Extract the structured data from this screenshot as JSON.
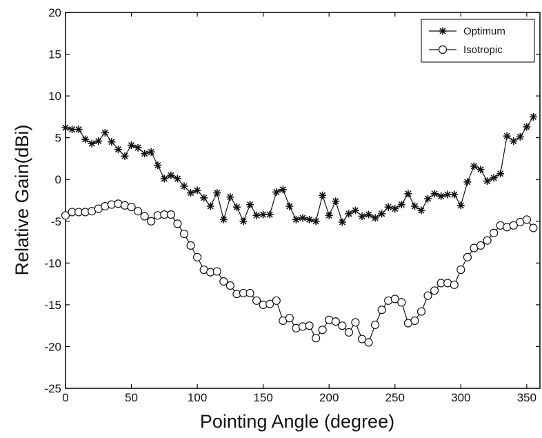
{
  "chart_data": {
    "type": "line",
    "xlabel": "Pointing Angle (degree)",
    "ylabel": "Relative Gain(dBi)",
    "xlim": [
      0,
      360
    ],
    "ylim": [
      -25,
      20
    ],
    "xticks": [
      0,
      50,
      100,
      150,
      200,
      250,
      300,
      350
    ],
    "yticks": [
      -25,
      -20,
      -15,
      -10,
      -5,
      0,
      5,
      10,
      15,
      20
    ],
    "grid": false,
    "legend_position": "top-right",
    "series": [
      {
        "name": "Optimum",
        "marker": "star",
        "color": "#111111",
        "x": [
          0,
          5,
          10,
          15,
          20,
          25,
          30,
          35,
          40,
          45,
          50,
          55,
          60,
          65,
          70,
          75,
          80,
          85,
          90,
          95,
          100,
          105,
          110,
          115,
          120,
          125,
          130,
          135,
          140,
          145,
          150,
          155,
          160,
          165,
          170,
          175,
          180,
          185,
          190,
          195,
          200,
          205,
          210,
          215,
          220,
          225,
          230,
          235,
          240,
          245,
          250,
          255,
          260,
          265,
          270,
          275,
          280,
          285,
          290,
          295,
          300,
          305,
          310,
          315,
          320,
          325,
          330,
          335,
          340,
          345,
          350,
          355
        ],
        "y": [
          6.2,
          6.0,
          6.0,
          4.8,
          4.3,
          4.6,
          5.6,
          4.5,
          3.6,
          2.8,
          4.1,
          3.8,
          3.1,
          3.3,
          1.7,
          0.1,
          0.5,
          0.1,
          -0.8,
          -1.6,
          -1.3,
          -2.2,
          -3.2,
          -1.6,
          -4.8,
          -2.1,
          -3.3,
          -5.0,
          -3.0,
          -4.3,
          -4.2,
          -4.2,
          -1.5,
          -1.2,
          -3.2,
          -4.8,
          -4.6,
          -4.8,
          -5.0,
          -1.9,
          -4.3,
          -2.6,
          -5.1,
          -4.1,
          -3.7,
          -4.4,
          -4.2,
          -4.6,
          -4.1,
          -3.3,
          -3.5,
          -3.0,
          -1.7,
          -3.2,
          -3.7,
          -2.3,
          -1.7,
          -2.0,
          -1.8,
          -1.8,
          -3.1,
          -0.3,
          1.6,
          1.2,
          -0.2,
          0.2,
          0.7,
          5.2,
          4.6,
          5.1,
          6.3,
          7.5
        ]
      },
      {
        "name": "Isotropic",
        "marker": "circle",
        "color": "#111111",
        "x": [
          0,
          5,
          10,
          15,
          20,
          25,
          30,
          35,
          40,
          45,
          50,
          55,
          60,
          65,
          70,
          75,
          80,
          85,
          90,
          95,
          100,
          105,
          110,
          115,
          120,
          125,
          130,
          135,
          140,
          145,
          150,
          155,
          160,
          165,
          170,
          175,
          180,
          185,
          190,
          195,
          200,
          205,
          210,
          215,
          220,
          225,
          230,
          235,
          240,
          245,
          250,
          255,
          260,
          265,
          270,
          275,
          280,
          285,
          290,
          295,
          300,
          305,
          310,
          315,
          320,
          325,
          330,
          335,
          340,
          345,
          350,
          355
        ],
        "y": [
          -4.3,
          -3.9,
          -3.9,
          -3.9,
          -3.8,
          -3.5,
          -3.2,
          -3.0,
          -2.9,
          -3.1,
          -3.3,
          -3.8,
          -4.4,
          -5.0,
          -4.3,
          -4.2,
          -4.2,
          -5.3,
          -6.5,
          -7.9,
          -9.3,
          -10.8,
          -11.1,
          -11.0,
          -12.2,
          -12.7,
          -13.7,
          -13.6,
          -13.6,
          -14.5,
          -15.0,
          -14.9,
          -14.5,
          -16.9,
          -16.6,
          -17.8,
          -17.6,
          -17.5,
          -19.0,
          -18.0,
          -16.8,
          -17.0,
          -17.5,
          -18.3,
          -17.1,
          -19.1,
          -19.5,
          -17.4,
          -15.6,
          -14.5,
          -14.3,
          -14.7,
          -17.2,
          -16.9,
          -15.8,
          -13.9,
          -13.3,
          -12.4,
          -12.4,
          -12.6,
          -10.8,
          -9.3,
          -8.2,
          -7.9,
          -7.3,
          -6.4,
          -5.5,
          -5.7,
          -5.5,
          -5.1,
          -4.8,
          -5.8
        ]
      }
    ]
  }
}
